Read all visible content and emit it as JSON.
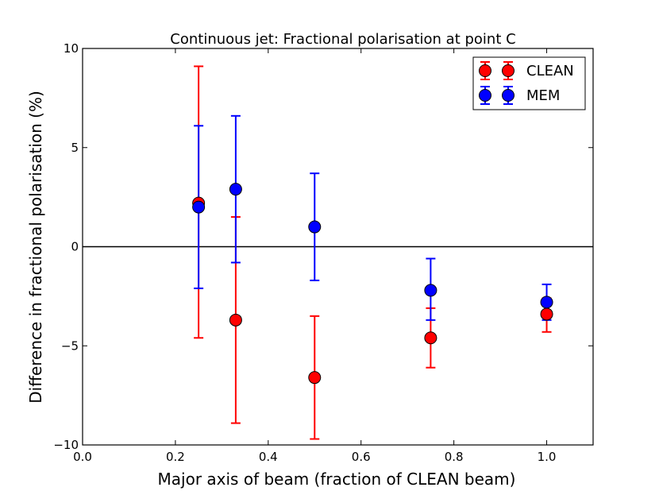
{
  "chart_data": {
    "type": "scatter",
    "title": "Continuous jet: Fractional polarisation at point C",
    "xlabel": "Major axis of beam (fraction of CLEAN beam)",
    "ylabel": "Difference in fractional polarisation (%)",
    "xlim": [
      0.0,
      1.1
    ],
    "ylim": [
      -10,
      10
    ],
    "xticks": [
      0.0,
      0.2,
      0.4,
      0.6,
      0.8,
      1.0
    ],
    "xtick_labels": [
      "0.0",
      "0.2",
      "0.4",
      "0.6",
      "0.8",
      "1.0"
    ],
    "yticks": [
      -10,
      -5,
      0,
      5,
      10
    ],
    "ytick_labels": [
      "−10",
      "−5",
      "0",
      "5",
      "10"
    ],
    "reference_line_y": 0,
    "legend_position": "top-right",
    "series": [
      {
        "name": "CLEAN",
        "color": "#ff0000",
        "points": [
          {
            "x": 0.25,
            "y": 2.2,
            "yerr_low": -4.6,
            "yerr_high": 9.1
          },
          {
            "x": 0.33,
            "y": -3.7,
            "yerr_low": -8.9,
            "yerr_high": 1.5
          },
          {
            "x": 0.5,
            "y": -6.6,
            "yerr_low": -9.7,
            "yerr_high": -3.5
          },
          {
            "x": 0.75,
            "y": -4.6,
            "yerr_low": -6.1,
            "yerr_high": -3.1
          },
          {
            "x": 1.0,
            "y": -3.4,
            "yerr_low": -4.3,
            "yerr_high": -2.6
          }
        ]
      },
      {
        "name": "MEM",
        "color": "#0000ff",
        "points": [
          {
            "x": 0.25,
            "y": 2.0,
            "yerr_low": -2.1,
            "yerr_high": 6.1
          },
          {
            "x": 0.33,
            "y": 2.9,
            "yerr_low": -0.8,
            "yerr_high": 6.6
          },
          {
            "x": 0.5,
            "y": 1.0,
            "yerr_low": -1.7,
            "yerr_high": 3.7
          },
          {
            "x": 0.75,
            "y": -2.2,
            "yerr_low": -3.7,
            "yerr_high": -0.6
          },
          {
            "x": 1.0,
            "y": -2.8,
            "yerr_low": -3.7,
            "yerr_high": -1.9
          }
        ]
      }
    ]
  }
}
